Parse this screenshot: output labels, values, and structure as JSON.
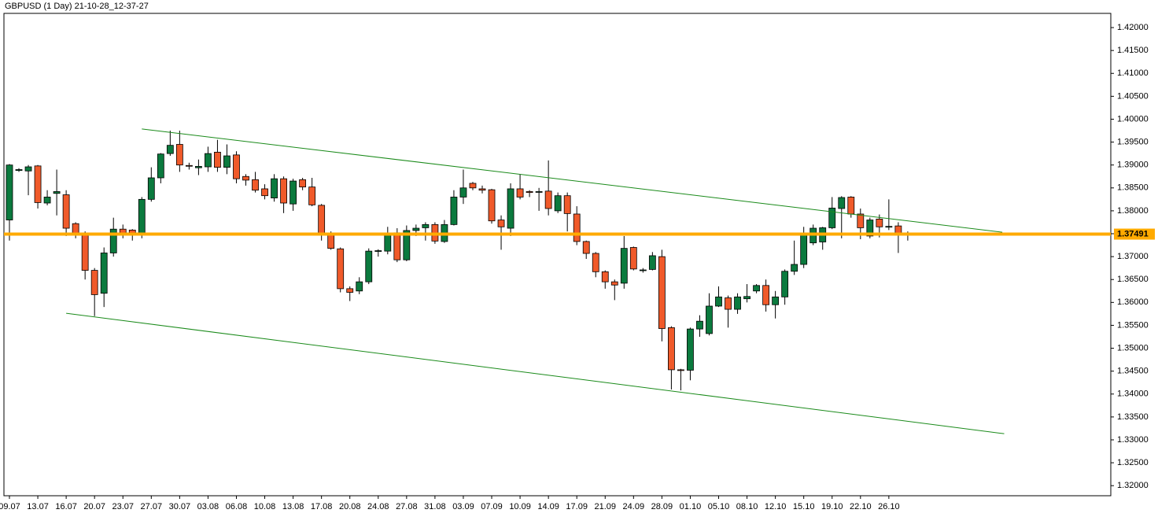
{
  "chart_data": {
    "type": "candlestick",
    "title": "GBPUSD (1 Day) 21-10-28_12-37-27",
    "categories": [
      "09.07",
      null,
      null,
      "13.07",
      null,
      null,
      "16.07",
      null,
      null,
      "20.07",
      null,
      null,
      "23.07",
      null,
      null,
      "27.07",
      null,
      null,
      "30.07",
      null,
      null,
      "03.08",
      null,
      null,
      "06.08",
      null,
      null,
      "10.08",
      null,
      null,
      "13.08",
      null,
      null,
      "17.08",
      null,
      null,
      "20.08",
      null,
      null,
      "24.08",
      null,
      null,
      "27.08",
      null,
      null,
      "31.08",
      null,
      null,
      "03.09",
      null,
      null,
      "07.09",
      null,
      null,
      "10.09",
      null,
      null,
      "14.09",
      null,
      null,
      "17.09",
      null,
      null,
      "21.09",
      null,
      null,
      "24.09",
      null,
      null,
      "28.09",
      null,
      null,
      "01.10",
      null,
      null,
      "05.10",
      null,
      null,
      "08.10",
      null,
      null,
      "12.10",
      null,
      null,
      "15.10",
      null,
      null,
      "19.10",
      null,
      null,
      "22.10",
      null,
      null,
      "26.10",
      null,
      null
    ],
    "open": [
      1.378,
      1.3888,
      1.3887,
      1.3898,
      1.3817,
      1.3838,
      1.3835,
      1.3772,
      1.375,
      1.367,
      1.362,
      1.3708,
      1.376,
      1.3758,
      1.3748,
      1.3825,
      1.3872,
      1.3925,
      1.3945,
      1.3899,
      1.3894,
      1.3896,
      1.3928,
      1.3895,
      1.3922,
      1.3875,
      1.3868,
      1.3848,
      1.3828,
      1.387,
      1.3815,
      1.3868,
      1.3852,
      1.3812,
      1.3748,
      1.3717,
      1.363,
      1.3625,
      1.3645,
      1.3712,
      1.3712,
      1.3752,
      1.3693,
      1.3757,
      1.3763,
      1.377,
      1.3733,
      1.377,
      1.383,
      1.386,
      1.3848,
      1.3846,
      1.378,
      1.3762,
      1.3848,
      1.3842,
      1.3841,
      1.3843,
      1.38,
      1.3833,
      1.3793,
      1.3733,
      1.3707,
      1.3667,
      1.3645,
      1.3642,
      1.372,
      1.367,
      1.3672,
      1.37,
      1.3545,
      1.3453,
      1.3452,
      1.3542,
      1.3532,
      1.3592,
      1.361,
      1.3585,
      1.3608,
      1.3625,
      1.3637,
      1.3595,
      1.3612,
      1.3668,
      1.3683,
      1.373,
      1.3732,
      1.3763,
      1.3805,
      1.383,
      1.3793,
      1.3745,
      1.3782,
      1.3765,
      1.3767,
      1.3748
    ],
    "high": [
      1.3902,
      1.3893,
      1.39,
      1.39,
      1.3845,
      1.389,
      1.3845,
      1.3775,
      1.3755,
      1.3675,
      1.372,
      1.3785,
      1.377,
      1.376,
      1.383,
      1.3895,
      1.3926,
      1.3975,
      1.3975,
      1.3905,
      1.3912,
      1.394,
      1.3955,
      1.3945,
      1.393,
      1.388,
      1.3885,
      1.3858,
      1.388,
      1.3875,
      1.387,
      1.3872,
      1.3872,
      1.3815,
      1.3755,
      1.372,
      1.3635,
      1.3655,
      1.3718,
      1.3716,
      1.3765,
      1.3762,
      1.3768,
      1.377,
      1.3775,
      1.3775,
      1.378,
      1.3845,
      1.389,
      1.3863,
      1.3855,
      1.3848,
      1.379,
      1.386,
      1.388,
      1.3845,
      1.385,
      1.391,
      1.384,
      1.384,
      1.381,
      1.3735,
      1.371,
      1.367,
      1.365,
      1.3745,
      1.3722,
      1.3675,
      1.371,
      1.3715,
      1.3548,
      1.3455,
      1.3545,
      1.3572,
      1.362,
      1.3635,
      1.3615,
      1.362,
      1.364,
      1.364,
      1.365,
      1.3625,
      1.3672,
      1.3735,
      1.3765,
      1.377,
      1.3765,
      1.383,
      1.3832,
      1.3832,
      1.3805,
      1.3785,
      1.3792,
      1.3825,
      1.3775,
      1.3755
    ],
    "low": [
      1.3735,
      1.3885,
      1.3834,
      1.3805,
      1.3812,
      1.379,
      1.3745,
      1.374,
      1.365,
      1.357,
      1.359,
      1.37,
      1.374,
      1.3735,
      1.374,
      1.382,
      1.386,
      1.392,
      1.3885,
      1.389,
      1.3878,
      1.3885,
      1.3885,
      1.388,
      1.386,
      1.3855,
      1.384,
      1.3825,
      1.382,
      1.3795,
      1.38,
      1.3845,
      1.381,
      1.3735,
      1.3715,
      1.3622,
      1.3603,
      1.3618,
      1.364,
      1.37,
      1.3705,
      1.3688,
      1.369,
      1.3745,
      1.3735,
      1.3728,
      1.373,
      1.3768,
      1.3815,
      1.3845,
      1.3838,
      1.3772,
      1.3715,
      1.3745,
      1.3825,
      1.383,
      1.38,
      1.379,
      1.3795,
      1.3755,
      1.3725,
      1.3695,
      1.3655,
      1.363,
      1.3605,
      1.363,
      1.367,
      1.3665,
      1.367,
      1.3515,
      1.341,
      1.3408,
      1.343,
      1.3525,
      1.3528,
      1.359,
      1.3545,
      1.3575,
      1.36,
      1.362,
      1.358,
      1.3565,
      1.3595,
      1.366,
      1.3675,
      1.3725,
      1.3715,
      1.376,
      1.374,
      1.3785,
      1.3738,
      1.374,
      1.3742,
      1.3758,
      1.3708,
      1.3735
    ],
    "close": [
      1.39,
      1.389,
      1.3896,
      1.3818,
      1.383,
      1.3842,
      1.3762,
      1.375,
      1.367,
      1.3617,
      1.3708,
      1.376,
      1.3748,
      1.375,
      1.3825,
      1.3872,
      1.3924,
      1.3943,
      1.39,
      1.3898,
      1.3897,
      1.3925,
      1.3895,
      1.392,
      1.387,
      1.3867,
      1.3845,
      1.3833,
      1.387,
      1.3817,
      1.3865,
      1.3852,
      1.3813,
      1.3748,
      1.3718,
      1.363,
      1.3622,
      1.3645,
      1.3712,
      1.3713,
      1.3747,
      1.3693,
      1.3757,
      1.3762,
      1.377,
      1.3734,
      1.377,
      1.383,
      1.385,
      1.385,
      1.3845,
      1.3778,
      1.3765,
      1.3848,
      1.383,
      1.384,
      1.3842,
      1.3805,
      1.3833,
      1.3794,
      1.3733,
      1.3707,
      1.3667,
      1.3645,
      1.3638,
      1.3718,
      1.3673,
      1.3671,
      1.3702,
      1.3543,
      1.3453,
      1.3452,
      1.3542,
      1.3559,
      1.3592,
      1.3612,
      1.3585,
      1.3612,
      1.3613,
      1.3637,
      1.3595,
      1.3612,
      1.3668,
      1.3683,
      1.3748,
      1.3762,
      1.3763,
      1.3806,
      1.3829,
      1.3793,
      1.3763,
      1.378,
      1.3765,
      1.3766,
      1.3747,
      1.3749
    ],
    "up_color": "#0b7a3e",
    "down_color": "#f05a2a",
    "ylim": [
      1.3178,
      1.4231
    ],
    "yticks": [
      {
        "value": 1.32,
        "label": "1.32000"
      },
      {
        "value": 1.325,
        "label": "1.32500"
      },
      {
        "value": 1.33,
        "label": "1.33000"
      },
      {
        "value": 1.335,
        "label": "1.33500"
      },
      {
        "value": 1.34,
        "label": "1.34000"
      },
      {
        "value": 1.345,
        "label": "1.34500"
      },
      {
        "value": 1.35,
        "label": "1.35000"
      },
      {
        "value": 1.355,
        "label": "1.35500"
      },
      {
        "value": 1.36,
        "label": "1.36000"
      },
      {
        "value": 1.365,
        "label": "1.36500"
      },
      {
        "value": 1.37,
        "label": "1.37000"
      },
      {
        "value": 1.375,
        "label": "1.37500"
      },
      {
        "value": 1.38,
        "label": "1.38000"
      },
      {
        "value": 1.385,
        "label": "1.38500"
      },
      {
        "value": 1.39,
        "label": "1.39000"
      },
      {
        "value": 1.395,
        "label": "1.39500"
      },
      {
        "value": 1.4,
        "label": "1.40000"
      },
      {
        "value": 1.405,
        "label": "1.40500"
      },
      {
        "value": 1.41,
        "label": "1.41000"
      },
      {
        "value": 1.415,
        "label": "1.41500"
      },
      {
        "value": 1.42,
        "label": "1.42000"
      }
    ],
    "price_line": {
      "value": 1.37491,
      "color": "#ffaa00"
    },
    "trendlines": [
      {
        "x": [
          14,
          105
        ],
        "y": [
          1.39787,
          1.37533
        ],
        "color": "#1a8a1a"
      },
      {
        "x": [
          6,
          105.2
        ],
        "y": [
          1.35763,
          1.33134
        ],
        "color": "#1a8a1a"
      }
    ]
  }
}
